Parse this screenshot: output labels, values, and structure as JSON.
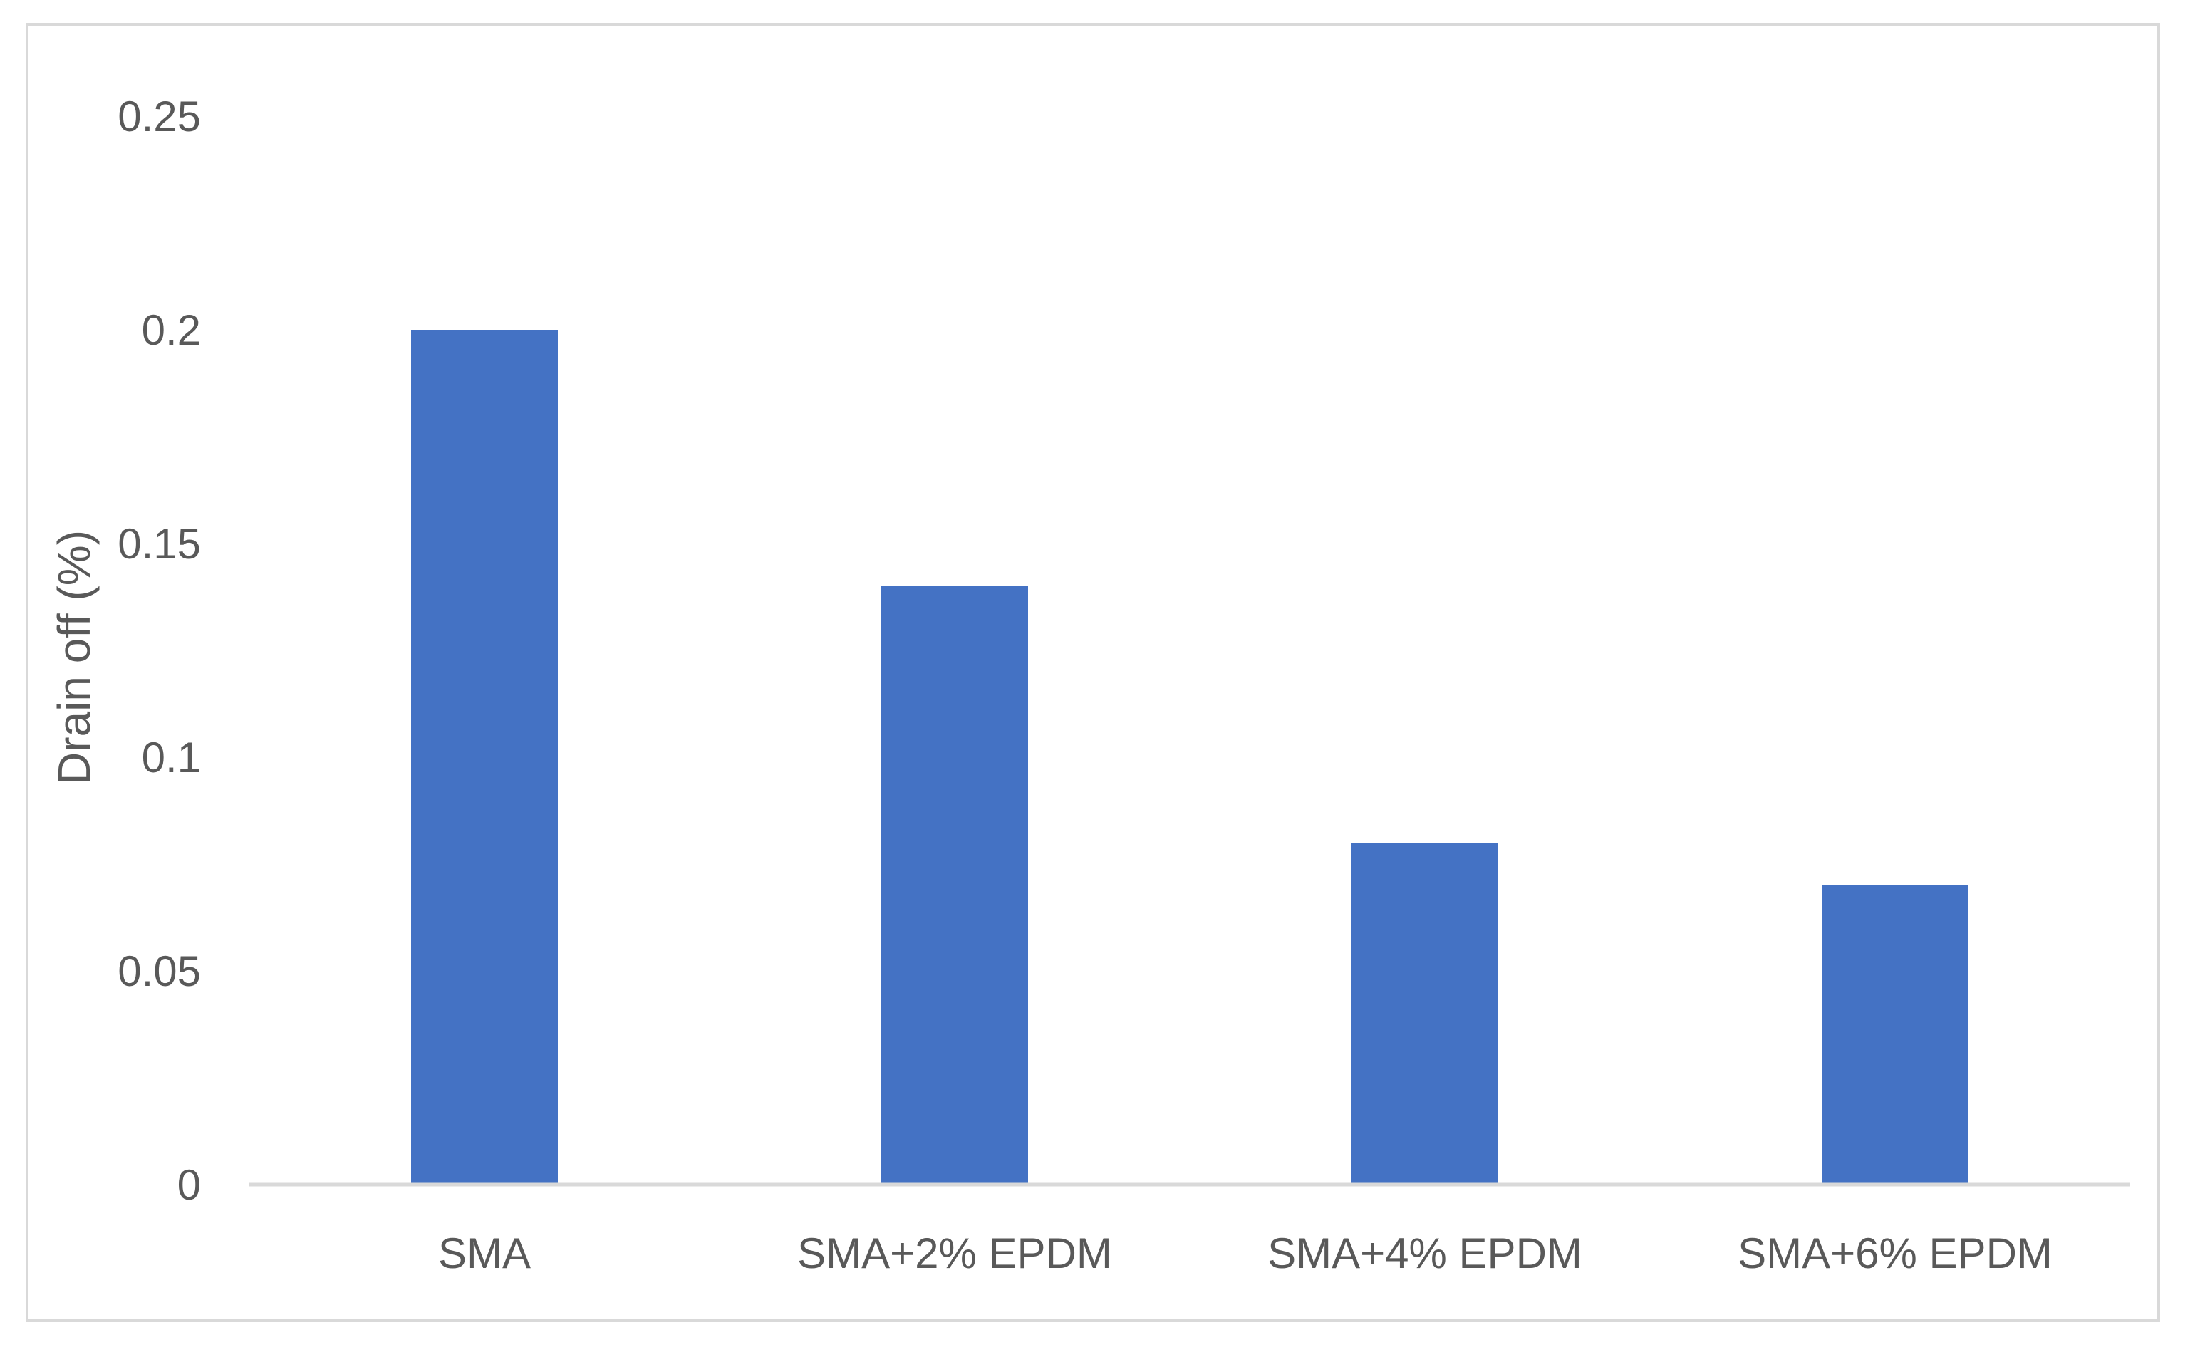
{
  "chart_data": {
    "type": "bar",
    "title": "",
    "xlabel": "",
    "ylabel": "Drain off (%)",
    "categories": [
      "SMA",
      "SMA+2% EPDM",
      "SMA+4% EPDM",
      "SMA+6% EPDM"
    ],
    "values": [
      0.2,
      0.14,
      0.08,
      0.07
    ],
    "ylim": [
      0,
      0.25
    ],
    "yticks": [
      "0",
      "0.05",
      "0.1",
      "0.15",
      "0.2",
      "0.25"
    ],
    "grid": false,
    "legend": "none",
    "bar_color": "#4472C4",
    "axis_color": "#d9d9d9",
    "text_color": "#595959"
  }
}
